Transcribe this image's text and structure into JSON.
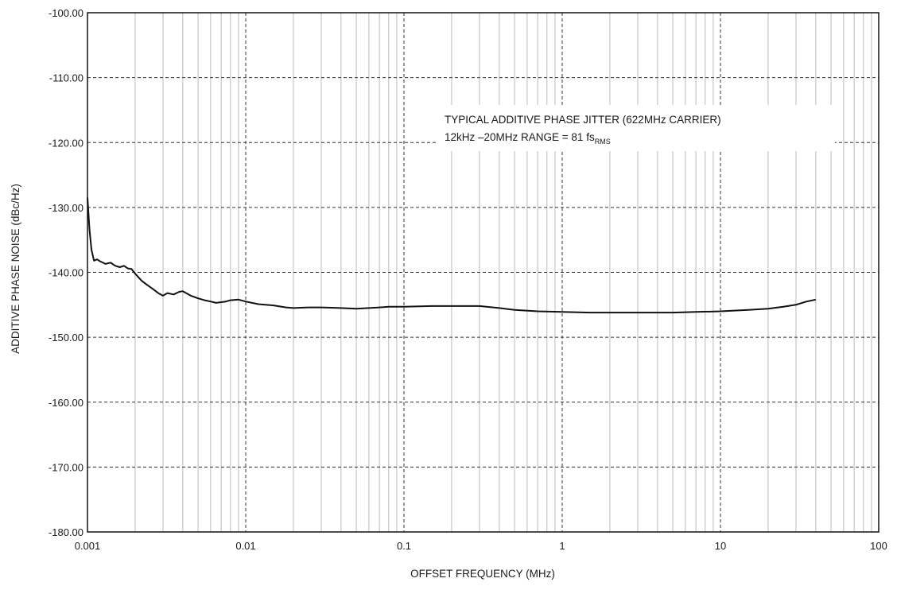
{
  "chart_data": {
    "type": "line",
    "title": "",
    "xlabel": "OFFSET FREQUENCY (MHz)",
    "ylabel": "ADDITIVE PHASE NOISE (dBc/Hz)",
    "x_scale": "log",
    "xlim": [
      0.001,
      100
    ],
    "ylim": [
      -180,
      -100
    ],
    "x_ticks": [
      0.001,
      0.01,
      0.1,
      1,
      10,
      100
    ],
    "x_tick_labels": [
      "0.001",
      "0.01",
      "0.1",
      "1",
      "10",
      "100"
    ],
    "y_ticks": [
      -100,
      -110,
      -120,
      -130,
      -140,
      -150,
      -160,
      -170,
      -180
    ],
    "y_tick_labels": [
      "-100.00",
      "-110.00",
      "-120.00",
      "-130.00",
      "-140.00",
      "-150.00",
      "-160.00",
      "-170.00",
      "-180.00"
    ],
    "grid": true,
    "legend": "none",
    "annotation": {
      "line1": "TYPICAL ADDITIVE PHASE JITTER (622MHz CARRIER)",
      "line2_main": "12kHz –20MHz RANGE = 81 fs",
      "line2_sub": "RMS"
    },
    "series": [
      {
        "color": "#111111",
        "x": [
          0.001,
          0.00103,
          0.00106,
          0.0011,
          0.00115,
          0.0012,
          0.0013,
          0.0014,
          0.0015,
          0.0016,
          0.0017,
          0.0018,
          0.0019,
          0.002,
          0.0022,
          0.0024,
          0.0026,
          0.0028,
          0.003,
          0.0032,
          0.0035,
          0.0038,
          0.004,
          0.0045,
          0.005,
          0.0055,
          0.006,
          0.0065,
          0.007,
          0.0075,
          0.008,
          0.009,
          0.01,
          0.012,
          0.015,
          0.018,
          0.02,
          0.025,
          0.03,
          0.04,
          0.05,
          0.06,
          0.07,
          0.08,
          0.1,
          0.15,
          0.2,
          0.3,
          0.4,
          0.5,
          0.7,
          1,
          1.5,
          2,
          3,
          4,
          5,
          7,
          10,
          15,
          20,
          25,
          30,
          35,
          40
        ],
        "y": [
          -128.5,
          -133.5,
          -136.5,
          -138.2,
          -138.0,
          -138.3,
          -138.7,
          -138.5,
          -139.0,
          -139.2,
          -139.0,
          -139.4,
          -139.5,
          -140.2,
          -141.3,
          -142.0,
          -142.6,
          -143.2,
          -143.6,
          -143.2,
          -143.4,
          -143.0,
          -142.9,
          -143.6,
          -144.0,
          -144.3,
          -144.5,
          -144.7,
          -144.6,
          -144.5,
          -144.3,
          -144.2,
          -144.5,
          -144.9,
          -145.1,
          -145.4,
          -145.5,
          -145.4,
          -145.4,
          -145.5,
          -145.6,
          -145.5,
          -145.4,
          -145.3,
          -145.3,
          -145.2,
          -145.2,
          -145.2,
          -145.5,
          -145.8,
          -146.0,
          -146.1,
          -146.2,
          -146.2,
          -146.2,
          -146.2,
          -146.2,
          -146.1,
          -146.0,
          -145.8,
          -145.6,
          -145.3,
          -145.0,
          -144.5,
          -144.2
        ]
      }
    ]
  }
}
